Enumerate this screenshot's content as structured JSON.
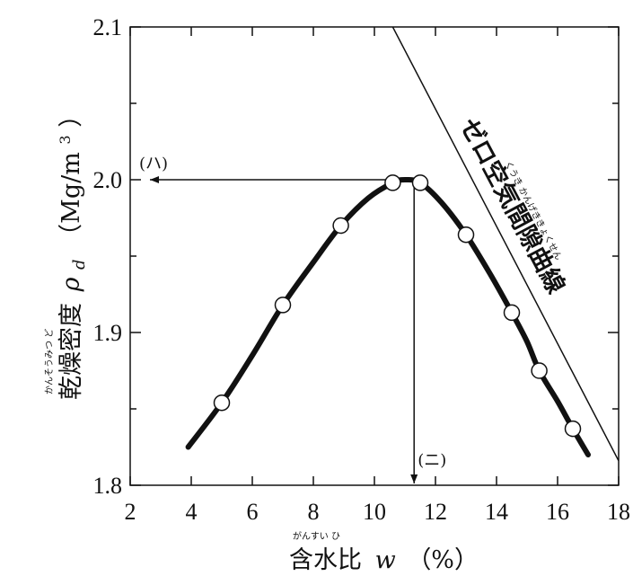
{
  "chart_data": {
    "type": "line",
    "x_ticks": [
      2,
      4,
      6,
      8,
      10,
      12,
      14,
      16,
      18
    ],
    "y_ticks": [
      "1.8",
      "1.9",
      "2.0",
      "2.1"
    ],
    "xlim": [
      2,
      18
    ],
    "ylim": [
      1.8,
      2.1
    ],
    "grid": false,
    "xlabel": {
      "main": "含水比",
      "ruby": "がんすい ひ",
      "symbol": "w",
      "unit": "（%）"
    },
    "ylabel": {
      "main": "乾燥密度",
      "ruby": "かんそうみつ ど",
      "symbol": "ρ",
      "subscript": "d",
      "unit_open": "（Mg/m",
      "unit_sup": "3",
      "unit_close": "）"
    },
    "series": [
      {
        "markers": true,
        "x": [
          5.0,
          7.0,
          8.9,
          10.6,
          11.5,
          13.0,
          14.5,
          15.4,
          16.5
        ],
        "y": [
          1.854,
          1.918,
          1.97,
          1.998,
          1.998,
          1.964,
          1.913,
          1.875,
          1.837
        ]
      }
    ],
    "curve": {
      "x": [
        3.9,
        5.0,
        6.0,
        7.0,
        8.0,
        8.9,
        9.8,
        10.6,
        11.0,
        11.5,
        12.2,
        13.0,
        13.8,
        14.5,
        15.0,
        15.4,
        16.0,
        16.5,
        17.0
      ],
      "y": [
        1.825,
        1.854,
        1.885,
        1.918,
        1.946,
        1.97,
        1.988,
        1.998,
        2.0,
        1.998,
        1.985,
        1.964,
        1.938,
        1.913,
        1.894,
        1.875,
        1.855,
        1.837,
        1.82
      ]
    },
    "zero_air_void_line": {
      "label": "ゼロ空気間隙曲線",
      "ruby": "くうき かんげききょくせん",
      "x": [
        10.6,
        18.0
      ],
      "y": [
        2.1,
        1.816
      ]
    },
    "annotations": {
      "max_dry_density": {
        "label": "(ハ)",
        "y": 2.0,
        "x_from": 11.3
      },
      "optimum_water_content": {
        "label": "(ニ)",
        "x": 11.3,
        "y_from": 2.0
      }
    }
  }
}
